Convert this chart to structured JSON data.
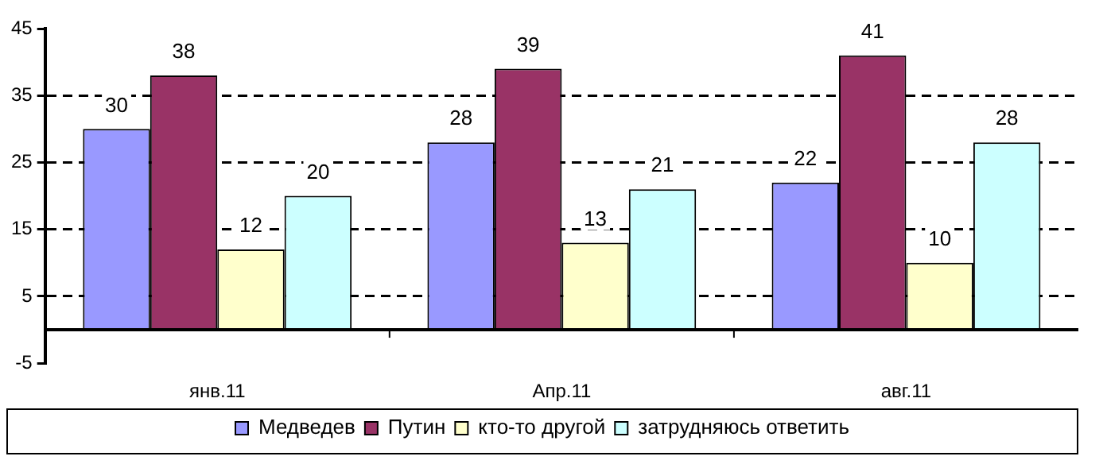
{
  "chart_data": {
    "type": "bar",
    "categories": [
      "янв.11",
      "Апр.11",
      "авг.11"
    ],
    "series": [
      {
        "name": "Медведев",
        "color": "#9999ff",
        "values": [
          30,
          28,
          22
        ]
      },
      {
        "name": "Путин",
        "color": "#993366",
        "values": [
          38,
          39,
          41
        ]
      },
      {
        "name": "кто-то другой",
        "color": "#ffffcc",
        "values": [
          12,
          13,
          10
        ]
      },
      {
        "name": "затрудняюсь ответить",
        "color": "#ccffff",
        "values": [
          20,
          21,
          28
        ]
      }
    ],
    "ylim": [
      -5,
      45
    ],
    "yticks": [
      -5,
      5,
      15,
      25,
      35,
      45
    ],
    "grid": "y",
    "line_style": "dashed",
    "legend": "bottom",
    "data_labels": true
  }
}
